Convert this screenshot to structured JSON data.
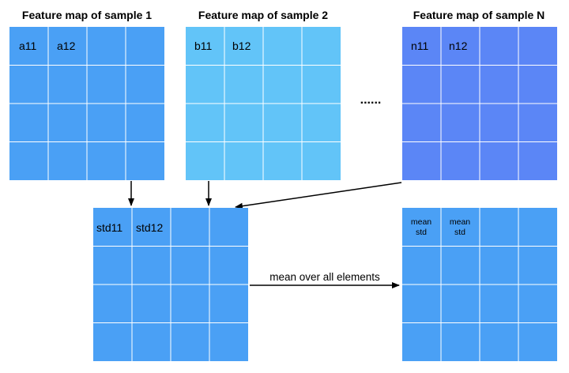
{
  "maps": {
    "sample1": {
      "title": "Feature map of sample 1",
      "color": "#4aa0f5",
      "cells": [
        "a11",
        "a12"
      ]
    },
    "sample2": {
      "title": "Feature map of sample 2",
      "color": "#62c4f8",
      "cells": [
        "b11",
        "b12"
      ]
    },
    "sampleN": {
      "title": "Feature map of sample N",
      "color": "#5b86f6",
      "cells": [
        "n11",
        "n12"
      ]
    },
    "std": {
      "color": "#4aa0f5",
      "cells": [
        "std11",
        "std12"
      ]
    },
    "result": {
      "color": "#4aa0f5",
      "cells": [
        {
          "line1": "mean",
          "line2": "std"
        },
        {
          "line1": "mean",
          "line2": "std"
        }
      ]
    }
  },
  "ellipsis": "......",
  "arrow_label": "mean over all elements",
  "grid_line_color": "#ffffff",
  "arrow_color": "#000000"
}
